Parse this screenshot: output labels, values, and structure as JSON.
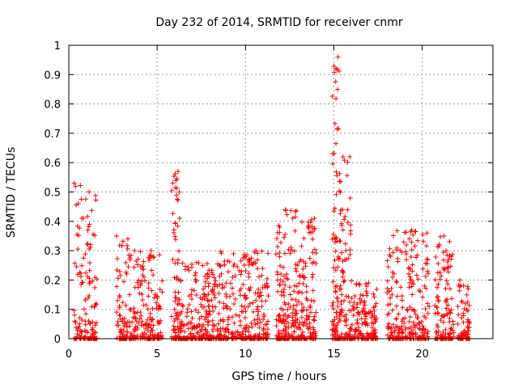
{
  "chart_data": {
    "type": "scatter",
    "title": "Day 232 of 2014, SRMTID for receiver cnmr",
    "xlabel": "GPS time / hours",
    "ylabel": "SRMTID / TECUs",
    "xlim": [
      0,
      24
    ],
    "ylim": [
      0,
      1
    ],
    "x_ticks": [
      0,
      5,
      10,
      15,
      20
    ],
    "x_tick_labels": [
      "0",
      "5",
      "10",
      "15",
      "20"
    ],
    "y_ticks": [
      0,
      0.1,
      0.2,
      0.3,
      0.4,
      0.5,
      0.6,
      0.7,
      0.8,
      0.9,
      1
    ],
    "y_tick_labels": [
      "0",
      "0.1",
      "0.2",
      "0.3",
      "0.4",
      "0.5",
      "0.6",
      "0.7",
      "0.8",
      "0.9",
      "1"
    ],
    "grid": true,
    "marker": "plus",
    "color": "#ff0000",
    "series": [
      {
        "name": "SRMTID",
        "clusters": [
          {
            "x_range": [
              0.3,
              1.6
            ],
            "peak": 0.53,
            "count": 140
          },
          {
            "x_range": [
              2.7,
              3.6
            ],
            "peak": 0.35,
            "count": 90
          },
          {
            "x_range": [
              3.6,
              5.3
            ],
            "peak": 0.3,
            "count": 160
          },
          {
            "x_range": [
              5.8,
              6.4
            ],
            "peak": 0.57,
            "count": 90
          },
          {
            "x_range": [
              6.4,
              8.5
            ],
            "peak": 0.26,
            "count": 220
          },
          {
            "x_range": [
              8.5,
              11.3
            ],
            "peak": 0.3,
            "count": 280
          },
          {
            "x_range": [
              11.7,
              13.0
            ],
            "peak": 0.44,
            "count": 170
          },
          {
            "x_range": [
              13.0,
              14.0
            ],
            "peak": 0.41,
            "count": 130
          },
          {
            "x_range": [
              14.9,
              15.3
            ],
            "peak": 0.96,
            "count": 90
          },
          {
            "x_range": [
              15.3,
              16.0
            ],
            "peak": 0.62,
            "count": 110
          },
          {
            "x_range": [
              16.0,
              17.5
            ],
            "peak": 0.19,
            "count": 150
          },
          {
            "x_range": [
              18.0,
              20.4
            ],
            "peak": 0.37,
            "count": 240
          },
          {
            "x_range": [
              20.7,
              21.8
            ],
            "peak": 0.35,
            "count": 120
          },
          {
            "x_range": [
              22.0,
              22.7
            ],
            "peak": 0.2,
            "count": 70
          }
        ]
      }
    ]
  }
}
